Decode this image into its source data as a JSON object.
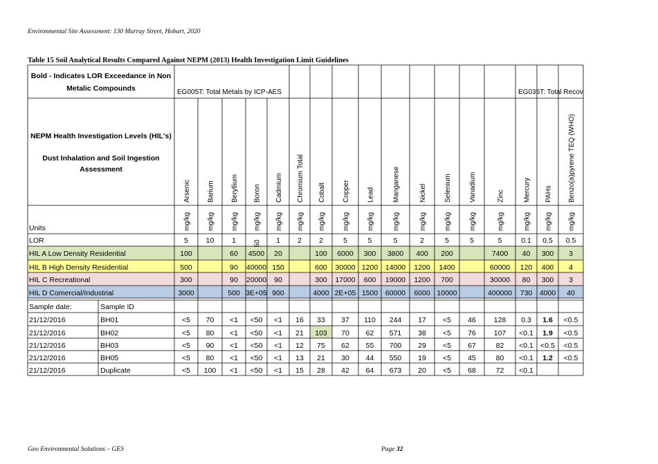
{
  "page_header": "Environmental Site Assessment: 130 Murray Street, Hobart, 2020",
  "table_caption": "Table 15 Soil Analytical Results Compared Against NEPM (2013) Health Investigation Limit Guidelines",
  "footer_left": "Geo Environmental Solutions – GES",
  "footer_page_label": "Page",
  "footer_page_number": "32",
  "table": {
    "legend_note": "Bold - Indicates LOR Exceedance in Non Metalic Compounds",
    "group_metals": "EG005T: Total Metals by ICP-AES",
    "group_recov": "EG035T: Total Recov",
    "hil_title": "NEPM Health Investigation Levels (HIL's)",
    "hil_subtitle": "Dust Inhalation and Soil Ingestion Assessment",
    "units_label": "Units",
    "lor_label": "LOR",
    "sample_date_label": "Sample date:",
    "sample_id_label": "Sample ID",
    "analytes": [
      "Arsenic",
      "Barium",
      "Beryllium",
      "Boron",
      "Cadmium",
      "Chromium Total",
      "Cobalt",
      "Copper",
      "Lead",
      "Manganese",
      "Nickel",
      "Selenium",
      "Vanadium",
      "Zinc",
      "Mercury",
      "PAHs",
      "Benzo(a)pyrene TEQ (WHO)"
    ],
    "unit": "mg/kg",
    "lor": [
      "5",
      "10",
      "1",
      "50",
      "1",
      "2",
      "2",
      "5",
      "5",
      "5",
      "2",
      "5",
      "5",
      "5",
      "0.1",
      "0.5",
      "0.5"
    ],
    "hil_rows": [
      {
        "label": "HIL A Low Density Residential",
        "color": "#d8e4bc",
        "values": [
          "100",
          "",
          "60",
          "4500",
          "20",
          "",
          "100",
          "6000",
          "300",
          "3800",
          "400",
          "200",
          "",
          "7400",
          "40",
          "300",
          "3"
        ]
      },
      {
        "label": "HIL B High Density Residential",
        "color": "#ffff99",
        "values": [
          "500",
          "",
          "90",
          "40000",
          "150",
          "",
          "600",
          "30000",
          "1200",
          "14000",
          "1200",
          "1400",
          "",
          "60000",
          "120",
          "400",
          "4"
        ]
      },
      {
        "label": "HIL C Recreational",
        "color": "#f2dcdb",
        "values": [
          "300",
          "",
          "90",
          "20000",
          "90",
          "",
          "300",
          "17000",
          "600",
          "19000",
          "1200",
          "700",
          "",
          "30000",
          "80",
          "300",
          "3"
        ]
      },
      {
        "label": "HIL D Comercial/Industrial",
        "color": "#b8cce4",
        "values": [
          "3000",
          "",
          "500",
          "3E+05",
          "900",
          "",
          "4000",
          "2E+05",
          "1500",
          "60000",
          "6000",
          "10000",
          "",
          "400000",
          "730",
          "4000",
          "40"
        ]
      }
    ],
    "samples": [
      {
        "date": "21/12/2016",
        "id": "BH01",
        "values": [
          "<5",
          "70",
          "<1",
          "<50",
          "<1",
          "16",
          "33",
          "37",
          "110",
          "244",
          "17",
          "<5",
          "46",
          "128",
          "0.3",
          "1.6",
          "<0.5"
        ],
        "bold": [
          15
        ]
      },
      {
        "date": "21/12/2016",
        "id": "BH02",
        "values": [
          "<5",
          "80",
          "<1",
          "<50",
          "<1",
          "21",
          "103",
          "70",
          "62",
          "571",
          "38",
          "<5",
          "76",
          "107",
          "<0.1",
          "1.9",
          "<0.5"
        ],
        "bold": [
          15
        ],
        "highlight": [
          {
            "col": 6,
            "color": "#d8e4bc"
          }
        ]
      },
      {
        "date": "21/12/2016",
        "id": "BH03",
        "values": [
          "<5",
          "90",
          "<1",
          "<50",
          "<1",
          "12",
          "75",
          "62",
          "55",
          "700",
          "29",
          "<5",
          "67",
          "82",
          "<0.1",
          "<0.5",
          "<0.5"
        ],
        "bold": []
      },
      {
        "date": "21/12/2016",
        "id": "BH05",
        "values": [
          "<5",
          "80",
          "<1",
          "<50",
          "<1",
          "13",
          "21",
          "30",
          "44",
          "550",
          "19",
          "<5",
          "45",
          "80",
          "<0.1",
          "1.2",
          "<0.5"
        ],
        "bold": [
          15
        ]
      },
      {
        "date": "21/12/2016",
        "id": "Duplicate",
        "values": [
          "<5",
          "100",
          "<1",
          "<50",
          "<1",
          "15",
          "28",
          "42",
          "64",
          "673",
          "20",
          "<5",
          "68",
          "72",
          "<0.1",
          "",
          ""
        ],
        "bold": []
      }
    ]
  }
}
